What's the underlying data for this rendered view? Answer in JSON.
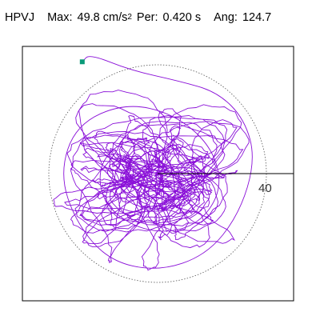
{
  "header": {
    "station": "HPVJ",
    "max_label": "Max:",
    "max_value": "49.8 cm/s",
    "max_exp": "2",
    "per_label": "Per:",
    "per_value": "0.420 s",
    "ang_label": "Ang:",
    "ang_value": "124.7"
  },
  "colors": {
    "trace": "#8a10d8",
    "circle": "#555555",
    "frame": "#000000",
    "start_marker": "#0a9a78"
  },
  "chart_data": {
    "type": "scatter",
    "title": "HPVJ  Max: 49.8 cm/s2  Per: 0.420 s  Ang: 124.7",
    "max_acceleration_cm_s2": 49.8,
    "period_s": 0.42,
    "angle_deg": 124.7,
    "axis_range": [
      -49.8,
      49.8
    ],
    "scale_tick": {
      "value": 40,
      "label": "40"
    },
    "reference_circle_radius": 40,
    "grid": false,
    "particle_motion_path_keypoints": [
      [
        -27.7,
        41.1
      ],
      [
        -25,
        44
      ],
      [
        -10,
        38
      ],
      [
        8,
        34
      ],
      [
        22,
        30
      ],
      [
        32,
        20
      ],
      [
        36,
        5
      ],
      [
        30,
        -15
      ],
      [
        18,
        -30
      ],
      [
        0,
        -36
      ],
      [
        -18,
        -32
      ],
      [
        -30,
        -18
      ],
      [
        -36,
        0
      ],
      [
        -30,
        18
      ],
      [
        -12,
        26
      ],
      [
        6,
        22
      ],
      [
        20,
        10
      ],
      [
        24,
        -6
      ],
      [
        14,
        -20
      ],
      [
        -4,
        -22
      ],
      [
        -20,
        -12
      ],
      [
        -22,
        4
      ],
      [
        -10,
        14
      ],
      [
        4,
        10
      ],
      [
        2,
        0
      ],
      [
        -4,
        -2
      ]
    ]
  }
}
